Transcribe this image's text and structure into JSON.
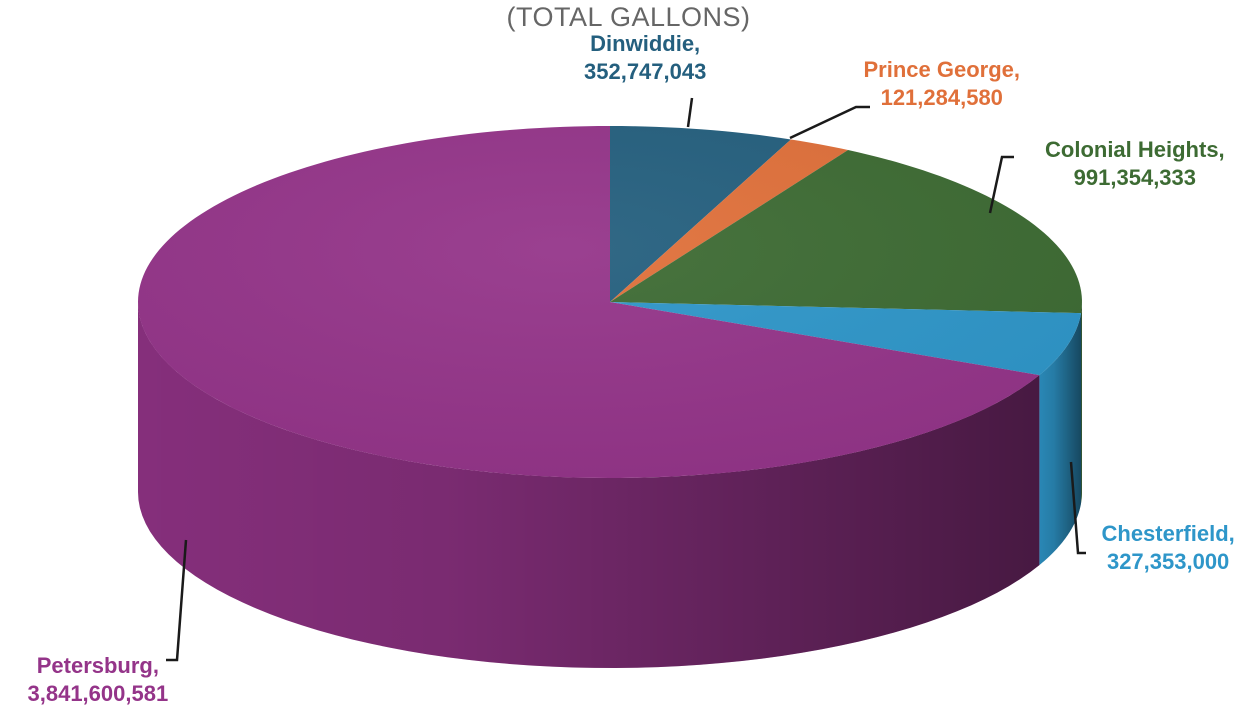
{
  "chart_data": {
    "type": "pie",
    "subtitle": "(TOTAL GALLONS)",
    "categories": [
      "Dinwiddie",
      "Prince George",
      "Colonial Heights",
      "Chesterfield",
      "Petersburg"
    ],
    "values": [
      352747043,
      121284580,
      991354333,
      327353000,
      3841600581
    ],
    "labels": [
      {
        "name": "Dinwiddie,",
        "value": "352,747,043"
      },
      {
        "name": "Prince George,",
        "value": "121,284,580"
      },
      {
        "name": "Colonial Heights,",
        "value": "991,354,333"
      },
      {
        "name": "Chesterfield,",
        "value": "327,353,000"
      },
      {
        "name": "Petersburg,",
        "value": "3,841,600,581"
      }
    ],
    "colors": [
      "#245f7e",
      "#e0703a",
      "#3d6b33",
      "#2e96c9",
      "#943489"
    ],
    "style": "3d",
    "legend": "none"
  }
}
